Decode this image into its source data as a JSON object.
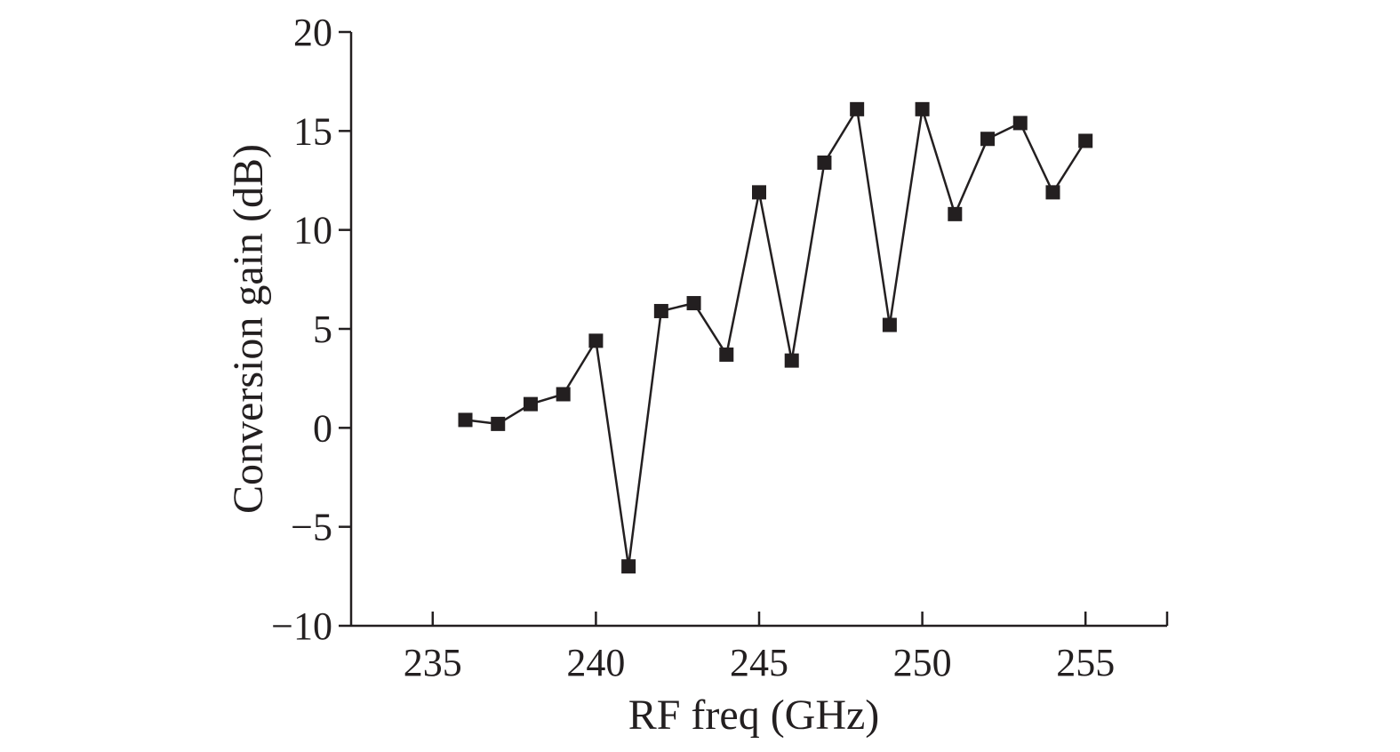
{
  "chart_data": {
    "type": "line",
    "title": "",
    "xlabel": "RF freq (GHz)",
    "ylabel": "Conversion gain (dB)",
    "xlim": [
      232.5,
      257.5
    ],
    "ylim": [
      -10,
      20
    ],
    "xticks": [
      235,
      240,
      245,
      250,
      255
    ],
    "yticks": [
      -10,
      -5,
      0,
      5,
      10,
      15,
      20
    ],
    "xtick_labels": [
      "235",
      "240",
      "245",
      "250",
      "255"
    ],
    "ytick_labels": [
      "−10",
      "−5",
      "0",
      "5",
      "10",
      "15",
      "20"
    ],
    "grid": false,
    "legend": "none",
    "series": [
      {
        "marker": "square",
        "color": "#231f20",
        "x": [
          236,
          237,
          238,
          239,
          240,
          241,
          242,
          243,
          244,
          245,
          246,
          247,
          248,
          249,
          250,
          251,
          252,
          253,
          254,
          255
        ],
        "y": [
          0.4,
          0.2,
          1.2,
          1.7,
          4.4,
          -7.0,
          5.9,
          6.3,
          3.7,
          11.9,
          3.4,
          13.4,
          16.1,
          5.2,
          16.1,
          10.8,
          14.6,
          15.4,
          11.9,
          14.5
        ]
      }
    ]
  }
}
